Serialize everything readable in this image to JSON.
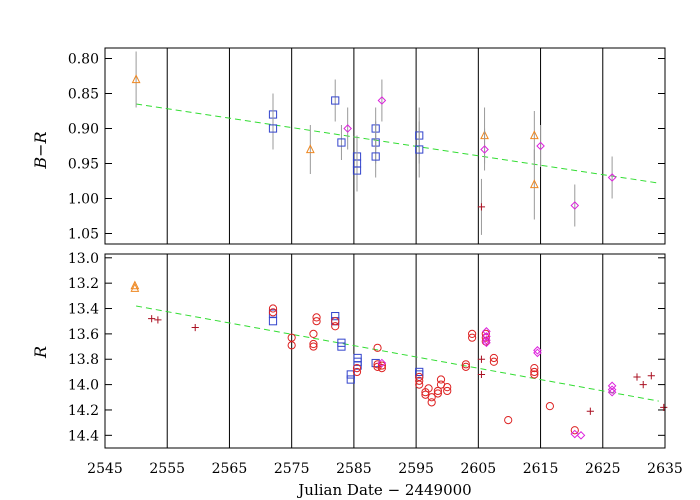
{
  "chart_data": [
    {
      "type": "scatter",
      "panel": "top",
      "ylabel": "B−R",
      "ylim": [
        1.065,
        0.785
      ],
      "y_inverted": true,
      "xlim": [
        2545,
        2635
      ],
      "yticks": [
        {
          "value": 0.8,
          "label": "0.80"
        },
        {
          "value": 0.85,
          "label": "0.85"
        },
        {
          "value": 0.9,
          "label": "0.90"
        },
        {
          "value": 0.95,
          "label": "0.95"
        },
        {
          "value": 1.0,
          "label": "1.00"
        },
        {
          "value": 1.05,
          "label": "1.05"
        }
      ],
      "vertical_lines": [
        2555,
        2565,
        2575,
        2585,
        2595,
        2605,
        2615,
        2625
      ],
      "fit_line": {
        "x": [
          2550,
          2634
        ],
        "y": [
          0.865,
          0.978
        ],
        "color": "#33dd33"
      },
      "series": [
        {
          "marker": "triangle",
          "color": "#ee8822",
          "points": [
            [
              2550,
              0.83,
              0.04
            ],
            [
              2578,
              0.93,
              0.035
            ],
            [
              2606,
              0.91,
              0.04
            ],
            [
              2614,
              0.91,
              0.035
            ],
            [
              2614,
              0.98,
              0.05
            ]
          ]
        },
        {
          "marker": "square",
          "color": "#3344cc",
          "points": [
            [
              2572,
              0.88,
              0.03
            ],
            [
              2572,
              0.9,
              0.03
            ],
            [
              2582,
              0.86,
              0.03
            ],
            [
              2583,
              0.92,
              0.025
            ],
            [
              2585.5,
              0.94,
              0.03
            ],
            [
              2585.5,
              0.95,
              0.03
            ],
            [
              2585.5,
              0.96,
              0.03
            ],
            [
              2588.5,
              0.9,
              0.03
            ],
            [
              2588.5,
              0.92,
              0.03
            ],
            [
              2588.5,
              0.94,
              0.03
            ],
            [
              2595.5,
              0.91,
              0.04
            ],
            [
              2595.5,
              0.93,
              0.04
            ]
          ]
        },
        {
          "marker": "diamond",
          "color": "#dd22dd",
          "points": [
            [
              2584,
              0.9,
              0.03
            ],
            [
              2589.5,
              0.86,
              0.03
            ],
            [
              2606,
              0.93,
              0.03
            ],
            [
              2615,
              0.925,
              0.03
            ],
            [
              2620.5,
              1.01,
              0.03
            ],
            [
              2626.5,
              0.97,
              0.03
            ]
          ]
        },
        {
          "marker": "plus",
          "color": "#aa1122",
          "points": [
            [
              2605.5,
              1.012,
              0.04
            ]
          ]
        }
      ]
    },
    {
      "type": "scatter",
      "panel": "bottom",
      "ylabel": "R",
      "xlabel": "Julian Date − 2449000",
      "ylim": [
        14.5,
        12.97
      ],
      "y_inverted": true,
      "xlim": [
        2545,
        2635
      ],
      "xticks": [
        {
          "value": 2545,
          "label": "2545"
        },
        {
          "value": 2555,
          "label": "2555"
        },
        {
          "value": 2565,
          "label": "2565"
        },
        {
          "value": 2575,
          "label": "2575"
        },
        {
          "value": 2585,
          "label": "2585"
        },
        {
          "value": 2595,
          "label": "2595"
        },
        {
          "value": 2605,
          "label": "2605"
        },
        {
          "value": 2615,
          "label": "2615"
        },
        {
          "value": 2625,
          "label": "2625"
        },
        {
          "value": 2635,
          "label": "2635"
        }
      ],
      "yticks": [
        {
          "value": 13.0,
          "label": "13.0"
        },
        {
          "value": 13.2,
          "label": "13.2"
        },
        {
          "value": 13.4,
          "label": "13.4"
        },
        {
          "value": 13.6,
          "label": "13.6"
        },
        {
          "value": 13.8,
          "label": "13.8"
        },
        {
          "value": 14.0,
          "label": "14.0"
        },
        {
          "value": 14.2,
          "label": "14.2"
        },
        {
          "value": 14.4,
          "label": "14.4"
        }
      ],
      "vertical_lines": [
        2555,
        2565,
        2575,
        2585,
        2595,
        2605,
        2615,
        2625
      ],
      "fit_line": {
        "x": [
          2550,
          2634
        ],
        "y": [
          13.38,
          14.13
        ],
        "color": "#33dd33"
      },
      "series": [
        {
          "marker": "triangle",
          "color": "#ee8822",
          "points": [
            [
              2549.8,
              13.22
            ],
            [
              2549.8,
              13.24
            ]
          ]
        },
        {
          "marker": "plus",
          "color": "#aa1122",
          "points": [
            [
              2552.5,
              13.48
            ],
            [
              2553.5,
              13.49
            ],
            [
              2559.5,
              13.55
            ],
            [
              2605.5,
              13.8
            ],
            [
              2605.5,
              13.92
            ],
            [
              2623,
              14.21
            ],
            [
              2630.5,
              13.94
            ],
            [
              2631.5,
              14.0
            ],
            [
              2632.8,
              13.93
            ],
            [
              2634.8,
              14.18
            ]
          ]
        },
        {
          "marker": "square",
          "color": "#3344cc",
          "points": [
            [
              2572,
              13.44
            ],
            [
              2572,
              13.5
            ],
            [
              2582,
              13.46
            ],
            [
              2582,
              13.5
            ],
            [
              2583,
              13.67
            ],
            [
              2583,
              13.7
            ],
            [
              2584.5,
              13.92
            ],
            [
              2584.5,
              13.96
            ],
            [
              2585.6,
              13.79
            ],
            [
              2585.6,
              13.82
            ],
            [
              2585.6,
              13.85
            ],
            [
              2588.5,
              13.83
            ],
            [
              2595.5,
              13.9
            ],
            [
              2595.5,
              13.92
            ]
          ]
        },
        {
          "marker": "circle",
          "color": "#dd2222",
          "points": [
            [
              2572,
              13.4
            ],
            [
              2572,
              13.43
            ],
            [
              2575,
              13.63
            ],
            [
              2575,
              13.69
            ],
            [
              2578.5,
              13.6
            ],
            [
              2578.5,
              13.68
            ],
            [
              2578.5,
              13.7
            ],
            [
              2579,
              13.47
            ],
            [
              2579,
              13.5
            ],
            [
              2582,
              13.5
            ],
            [
              2582,
              13.54
            ],
            [
              2585.5,
              13.87
            ],
            [
              2585.5,
              13.9
            ],
            [
              2588.8,
              13.71
            ],
            [
              2588.8,
              13.84
            ],
            [
              2588.8,
              13.86
            ],
            [
              2589.5,
              13.85
            ],
            [
              2589.5,
              13.87
            ],
            [
              2595.5,
              13.94
            ],
            [
              2595.5,
              13.97
            ],
            [
              2595.5,
              14.0
            ],
            [
              2596.5,
              14.06
            ],
            [
              2596.5,
              14.08
            ],
            [
              2597,
              14.03
            ],
            [
              2597.5,
              14.1
            ],
            [
              2597.5,
              14.14
            ],
            [
              2598.5,
              14.05
            ],
            [
              2598.5,
              14.07
            ],
            [
              2599,
              13.96
            ],
            [
              2599,
              14.0
            ],
            [
              2600,
              14.02
            ],
            [
              2600,
              14.05
            ],
            [
              2603,
              13.84
            ],
            [
              2603,
              13.86
            ],
            [
              2604,
              13.6
            ],
            [
              2604,
              13.63
            ],
            [
              2606.2,
              13.6
            ],
            [
              2606.2,
              13.63
            ],
            [
              2606.2,
              13.66
            ],
            [
              2607.5,
              13.79
            ],
            [
              2607.5,
              13.82
            ],
            [
              2609.8,
              14.28
            ],
            [
              2614,
              13.87
            ],
            [
              2614,
              13.9
            ],
            [
              2614,
              13.92
            ],
            [
              2616.5,
              14.17
            ],
            [
              2620.5,
              14.36
            ]
          ]
        },
        {
          "marker": "diamond",
          "color": "#dd22dd",
          "points": [
            [
              2589.5,
              13.83
            ],
            [
              2606.3,
              13.58
            ],
            [
              2606.3,
              13.62
            ],
            [
              2606.3,
              13.65
            ],
            [
              2606.3,
              13.67
            ],
            [
              2614.5,
              13.73
            ],
            [
              2614.5,
              13.75
            ],
            [
              2620.5,
              14.39
            ],
            [
              2621.5,
              14.4
            ],
            [
              2626.5,
              14.01
            ],
            [
              2626.5,
              14.04
            ],
            [
              2626.5,
              14.06
            ]
          ]
        }
      ]
    }
  ]
}
